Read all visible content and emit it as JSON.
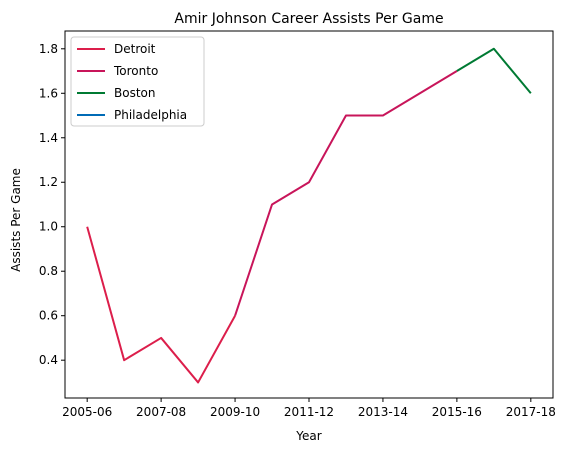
{
  "chart_data": {
    "type": "line",
    "title": "Amir Johnson Career Assists Per Game",
    "xlabel": "Year",
    "ylabel": "Assists Per Game",
    "x_tick_labels": [
      "2005-06",
      "2007-08",
      "2009-10",
      "2011-12",
      "2013-14",
      "2015-16",
      "2017-18"
    ],
    "y_ticks": [
      0.4,
      0.6,
      0.8,
      1.0,
      1.2,
      1.4,
      1.6,
      1.8
    ],
    "y_tick_labels": [
      "0.4",
      "0.6",
      "0.8",
      "1.0",
      "1.2",
      "1.4",
      "1.6",
      "1.8"
    ],
    "xlim": [
      -0.6,
      12.6
    ],
    "ylim": [
      0.23,
      1.88
    ],
    "grid": false,
    "legend_position": "upper-left",
    "seasons": [
      "2005-06",
      "2006-07",
      "2007-08",
      "2008-09",
      "2009-10",
      "2010-11",
      "2011-12",
      "2012-13",
      "2013-14",
      "2014-15",
      "2015-16",
      "2016-17",
      "2017-18"
    ],
    "series": [
      {
        "name": "Detroit",
        "color": "#dc1e4b",
        "points": [
          [
            0,
            1.0
          ],
          [
            1,
            0.4
          ],
          [
            2,
            0.5
          ],
          [
            3,
            0.3
          ],
          [
            4,
            0.6
          ]
        ]
      },
      {
        "name": "Toronto",
        "color": "#c8155a",
        "points": [
          [
            4,
            0.6
          ],
          [
            5,
            1.1
          ],
          [
            6,
            1.2
          ],
          [
            7,
            1.5
          ],
          [
            8,
            1.5
          ],
          [
            9,
            1.6
          ],
          [
            10,
            1.7
          ]
        ]
      },
      {
        "name": "Boston",
        "color": "#007a33",
        "points": [
          [
            10,
            1.7
          ],
          [
            11,
            1.8
          ],
          [
            12,
            1.6
          ]
        ]
      },
      {
        "name": "Philadelphia",
        "color": "#006bb6",
        "points": [
          [
            12,
            1.6
          ]
        ]
      }
    ]
  }
}
